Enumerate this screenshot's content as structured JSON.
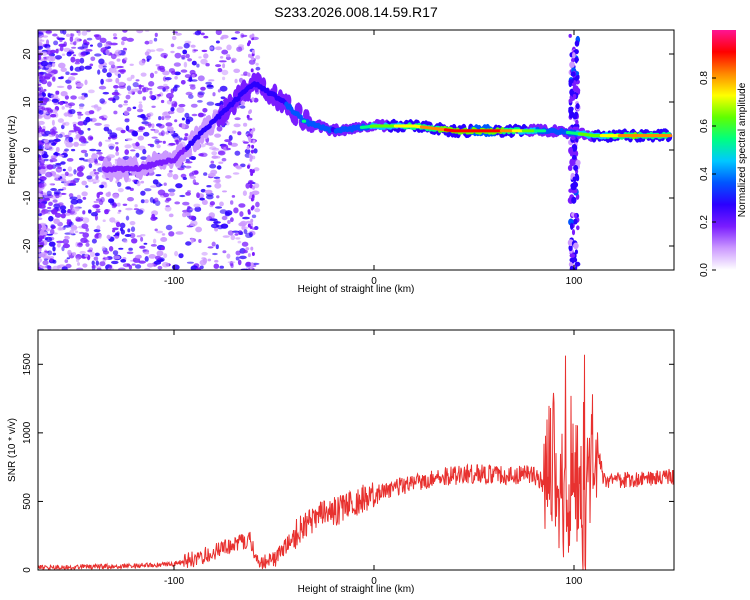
{
  "title": "S233.2026.008.14.59.R17",
  "chart_data": [
    {
      "type": "heatmap",
      "name": "spectrogram",
      "xlabel": "Height of straight line (km)",
      "ylabel": "Frequency (Hz)",
      "xlim": [
        -168,
        150
      ],
      "ylim": [
        -25,
        25
      ],
      "xticks": [
        -100,
        0,
        100
      ],
      "yticks": [
        -20,
        -10,
        0,
        10,
        20
      ],
      "colorbar": {
        "label": "Normalized spectral amplitude",
        "range": [
          0,
          1
        ],
        "ticks": [
          0.0,
          0.2,
          0.4,
          0.6,
          0.8
        ],
        "colors": [
          "#ffffff",
          "#cc99ff",
          "#7a1cff",
          "#2b00ff",
          "#0055ff",
          "#00c8ff",
          "#00ff80",
          "#60ff00",
          "#ffff00",
          "#ff8800",
          "#ff0000",
          "#ff1493"
        ]
      },
      "ridge": [
        {
          "height_km": -120,
          "freq_hz": -4,
          "amplitude": 0.22
        },
        {
          "height_km": -100,
          "freq_hz": -2,
          "amplitude": 0.28
        },
        {
          "height_km": -90,
          "freq_hz": 2,
          "amplitude": 0.35
        },
        {
          "height_km": -75,
          "freq_hz": 8,
          "amplitude": 0.4
        },
        {
          "height_km": -60,
          "freq_hz": 14,
          "amplitude": 0.42
        },
        {
          "height_km": -45,
          "freq_hz": 10,
          "amplitude": 0.45
        },
        {
          "height_km": -35,
          "freq_hz": 6,
          "amplitude": 0.55
        },
        {
          "height_km": -20,
          "freq_hz": 4,
          "amplitude": 0.45
        },
        {
          "height_km": 0,
          "freq_hz": 5,
          "amplitude": 0.6
        },
        {
          "height_km": 20,
          "freq_hz": 5,
          "amplitude": 0.75
        },
        {
          "height_km": 40,
          "freq_hz": 4,
          "amplitude": 0.9
        },
        {
          "height_km": 60,
          "freq_hz": 4,
          "amplitude": 0.92
        },
        {
          "height_km": 80,
          "freq_hz": 4,
          "amplitude": 0.6
        },
        {
          "height_km": 90,
          "freq_hz": 4,
          "amplitude": 0.5
        },
        {
          "height_km": 110,
          "freq_hz": 3,
          "amplitude": 0.65
        },
        {
          "height_km": 130,
          "freq_hz": 3,
          "amplitude": 0.85
        },
        {
          "height_km": 148,
          "freq_hz": 3,
          "amplitude": 0.8
        }
      ]
    },
    {
      "type": "line",
      "name": "snr",
      "xlabel": "Height of straight line (km)",
      "ylabel": "SNR (10 * v/v)",
      "xlim": [
        -168,
        150
      ],
      "ylim": [
        0,
        1750
      ],
      "xticks": [
        -100,
        0,
        100
      ],
      "yticks": [
        0,
        500,
        1000,
        1500
      ],
      "color": "#e8312f",
      "series": [
        {
          "name": "SNR",
          "x": [
            -168,
            -140,
            -120,
            -100,
            -90,
            -80,
            -70,
            -62,
            -58,
            -50,
            -40,
            -35,
            -30,
            -20,
            -10,
            0,
            10,
            20,
            30,
            40,
            50,
            60,
            70,
            80,
            85,
            90,
            95,
            100,
            105,
            110,
            115,
            120,
            130,
            140,
            150
          ],
          "y": [
            20,
            25,
            30,
            45,
            80,
            130,
            190,
            220,
            60,
            70,
            250,
            320,
            380,
            420,
            500,
            540,
            600,
            640,
            670,
            690,
            700,
            695,
            690,
            700,
            620,
            800,
            400,
            700,
            350,
            1000,
            650,
            650,
            660,
            670,
            680
          ]
        }
      ]
    }
  ]
}
